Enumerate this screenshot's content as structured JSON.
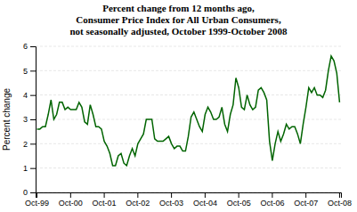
{
  "chart_data": {
    "type": "line",
    "title": [
      "Percent change from 12 months ago,",
      "Consumer Price Index for All Urban Consumers,",
      "not seasonally adjusted, October 1999-October 2008"
    ],
    "y_label": "Percent change",
    "categories": [
      "Oct-99",
      null,
      null,
      null,
      null,
      null,
      null,
      null,
      null,
      null,
      null,
      null,
      "Oct-00",
      null,
      null,
      null,
      null,
      null,
      null,
      null,
      null,
      null,
      null,
      null,
      "Oct-01",
      null,
      null,
      null,
      null,
      null,
      null,
      null,
      null,
      null,
      null,
      null,
      "Oct-02",
      null,
      null,
      null,
      null,
      null,
      null,
      null,
      null,
      null,
      null,
      null,
      "Oct-03",
      null,
      null,
      null,
      null,
      null,
      null,
      null,
      null,
      null,
      null,
      null,
      "Oct-04",
      null,
      null,
      null,
      null,
      null,
      null,
      null,
      null,
      null,
      null,
      null,
      "Oct-05",
      null,
      null,
      null,
      null,
      null,
      null,
      null,
      null,
      null,
      null,
      null,
      "Oct-06",
      null,
      null,
      null,
      null,
      null,
      null,
      null,
      null,
      null,
      null,
      null,
      "Oct-07",
      null,
      null,
      null,
      null,
      null,
      null,
      null,
      null,
      null,
      null,
      null,
      "Oct-08"
    ],
    "values": [
      2.6,
      2.6,
      2.7,
      2.7,
      3.2,
      3.8,
      3.0,
      3.2,
      3.7,
      3.7,
      3.4,
      3.5,
      3.4,
      3.4,
      3.4,
      3.7,
      3.5,
      2.9,
      2.8,
      3.6,
      3.2,
      2.7,
      2.7,
      2.6,
      2.1,
      1.9,
      1.6,
      1.1,
      1.1,
      1.5,
      1.6,
      1.2,
      1.1,
      1.5,
      1.8,
      1.5,
      2.0,
      2.2,
      2.4,
      3.0,
      3.0,
      3.0,
      2.2,
      2.1,
      2.1,
      2.1,
      2.2,
      2.3,
      2.0,
      1.8,
      1.9,
      1.9,
      1.7,
      1.7,
      2.3,
      3.1,
      3.3,
      3.0,
      2.7,
      2.5,
      3.2,
      3.5,
      3.3,
      3.0,
      3.0,
      3.1,
      3.5,
      2.8,
      2.5,
      3.2,
      3.6,
      4.7,
      4.3,
      3.5,
      3.4,
      4.0,
      3.6,
      3.4,
      3.5,
      4.2,
      4.3,
      4.1,
      3.8,
      2.1,
      1.3,
      2.0,
      2.5,
      2.1,
      2.4,
      2.8,
      2.6,
      2.7,
      2.7,
      2.4,
      2.0,
      2.8,
      3.5,
      4.3,
      4.1,
      4.3,
      4.0,
      4.0,
      3.9,
      4.2,
      5.0,
      5.6,
      5.4,
      4.9,
      3.7
    ],
    "color": "#006400",
    "ylim": [
      0,
      6
    ],
    "yticks": [
      0,
      1,
      2,
      3,
      4,
      5,
      6
    ],
    "grid": true
  }
}
